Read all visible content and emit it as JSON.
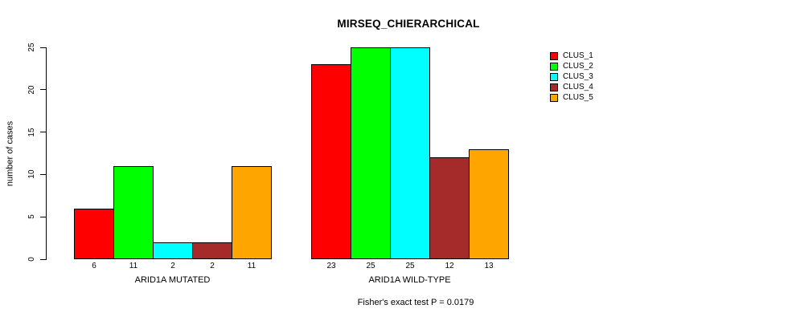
{
  "title": "MIRSEQ_CHIERARCHICAL",
  "chart_data": {
    "type": "bar",
    "title": "MIRSEQ_CHIERARCHICAL",
    "xlabel": "",
    "ylabel": "number of cases",
    "categories": [
      "ARID1A MUTATED",
      "ARID1A WILD-TYPE"
    ],
    "series": [
      {
        "name": "CLUS_1",
        "color": "#FF0000",
        "values": [
          6,
          23
        ]
      },
      {
        "name": "CLUS_2",
        "color": "#00FF00",
        "values": [
          11,
          25
        ]
      },
      {
        "name": "CLUS_3",
        "color": "#00FFFF",
        "values": [
          2,
          25
        ]
      },
      {
        "name": "CLUS_4",
        "color": "#A52A2A",
        "values": [
          2,
          12
        ]
      },
      {
        "name": "CLUS_5",
        "color": "#FFA500",
        "values": [
          11,
          13
        ]
      }
    ],
    "yticks": [
      "0",
      "5",
      "10",
      "15",
      "20",
      "25"
    ],
    "ylim": [
      0,
      25
    ],
    "grid": false,
    "legend_position": "topright",
    "bar_value_labels_shown": true,
    "annotation": "Fisher's exact test P = 0.0179"
  }
}
